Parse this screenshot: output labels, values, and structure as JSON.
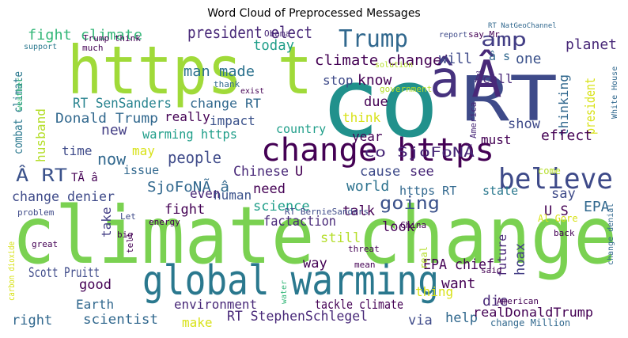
{
  "chart_data": {
    "type": "wordcloud",
    "title": "Word Cloud of Preprocessed Messages",
    "words": [
      {
        "text": "climate change",
        "color": "#7ad151"
      },
      {
        "text": "https t",
        "color": "#a0da39"
      },
      {
        "text": "co",
        "color": "#21918c"
      },
      {
        "text": "RT",
        "color": "#3e4a89"
      },
      {
        "text": "â",
        "color": "#46327e"
      },
      {
        "text": "Â",
        "color": "#482878"
      },
      {
        "text": "global warming",
        "color": "#2a788e"
      },
      {
        "text": "change https",
        "color": "#440154"
      },
      {
        "text": "believe",
        "color": "#3e4a89"
      },
      {
        "text": "Trump",
        "color": "#31688e"
      },
      {
        "text": "president elect",
        "color": "#482878"
      },
      {
        "text": "fight climate",
        "color": "#35b779"
      },
      {
        "text": "amp",
        "color": "#433e85"
      },
      {
        "text": "planet",
        "color": "#482878"
      },
      {
        "text": "man made",
        "color": "#2c728e"
      },
      {
        "text": "today",
        "color": "#1f9e89"
      },
      {
        "text": "climate change'",
        "color": "#440154"
      },
      {
        "text": "will",
        "color": "#3e4a89"
      },
      {
        "text": "â s",
        "color": "#31688e"
      },
      {
        "text": "Ã â",
        "color": "#472c7a"
      },
      {
        "text": "one",
        "color": "#3b528b"
      },
      {
        "text": "RT SenSanders",
        "color": "#26828e"
      },
      {
        "text": "Donald Trump",
        "color": "#31688e"
      },
      {
        "text": "combat climate",
        "color": "#2a788e"
      },
      {
        "text": "husband",
        "color": "#b5de2b"
      },
      {
        "text": "new",
        "color": "#433e85"
      },
      {
        "text": "warming https",
        "color": "#1f9e89"
      },
      {
        "text": "really",
        "color": "#440154"
      },
      {
        "text": "change RT",
        "color": "#31688e"
      },
      {
        "text": "impact",
        "color": "#3b528b"
      },
      {
        "text": "know",
        "color": "#440154"
      },
      {
        "text": "stop",
        "color": "#3e4a89"
      },
      {
        "text": "call",
        "color": "#482878"
      },
      {
        "text": "due",
        "color": "#440154"
      },
      {
        "text": "thinking",
        "color": "#31688e"
      },
      {
        "text": "president",
        "color": "#d8e219"
      },
      {
        "text": "show",
        "color": "#3e4a89"
      },
      {
        "text": "effect",
        "color": "#440154"
      },
      {
        "text": "must",
        "color": "#440154"
      },
      {
        "text": "think",
        "color": "#d8e219"
      },
      {
        "text": "year",
        "color": "#440154"
      },
      {
        "text": "country",
        "color": "#1f9e89"
      },
      {
        "text": "co SjoFoNÃ",
        "color": "#482878"
      },
      {
        "text": "time",
        "color": "#3e4a89"
      },
      {
        "text": "now",
        "color": "#31688e"
      },
      {
        "text": "people",
        "color": "#3e4a89"
      },
      {
        "text": "may",
        "color": "#d8e219"
      },
      {
        "text": "Â RT",
        "color": "#3b528b"
      },
      {
        "text": "SjoFoNÃ â",
        "color": "#31688e"
      },
      {
        "text": "TÃ â",
        "color": "#440154"
      },
      {
        "text": "issue",
        "color": "#31688e"
      },
      {
        "text": "Chinese",
        "color": "#482878"
      },
      {
        "text": "U",
        "color": "#440154"
      },
      {
        "text": "cause",
        "color": "#3e4a89"
      },
      {
        "text": "see",
        "color": "#482878"
      },
      {
        "text": "world",
        "color": "#2c728e"
      },
      {
        "text": "need",
        "color": "#440154"
      },
      {
        "text": "human",
        "color": "#3b528b"
      },
      {
        "text": "even",
        "color": "#482878"
      },
      {
        "text": "change denier",
        "color": "#3e4a89"
      },
      {
        "text": "science",
        "color": "#1f9e89"
      },
      {
        "text": "going",
        "color": "#3b528b"
      },
      {
        "text": "https RT",
        "color": "#31688e"
      },
      {
        "text": "state",
        "color": "#2a788e"
      },
      {
        "text": "say",
        "color": "#3e4a89"
      },
      {
        "text": "EPA",
        "color": "#31688e"
      },
      {
        "text": "U S",
        "color": "#440154"
      },
      {
        "text": "look",
        "color": "#440154"
      },
      {
        "text": "talk",
        "color": "#440154"
      },
      {
        "text": "fight",
        "color": "#440154"
      },
      {
        "text": "take",
        "color": "#433e85"
      },
      {
        "text": "factaction",
        "color": "#482878"
      },
      {
        "text": "still",
        "color": "#b5de2b"
      },
      {
        "text": "Scott Pruitt",
        "color": "#3e4a89"
      },
      {
        "text": "good",
        "color": "#440154"
      },
      {
        "text": "Earth",
        "color": "#31688e"
      },
      {
        "text": "environment",
        "color": "#482878"
      },
      {
        "text": "tackle climate",
        "color": "#440154"
      },
      {
        "text": "RT StephenSchlegel",
        "color": "#482878"
      },
      {
        "text": "scientist",
        "color": "#31688e"
      },
      {
        "text": "right",
        "color": "#31688e"
      },
      {
        "text": "make",
        "color": "#d8e219"
      },
      {
        "text": "via",
        "color": "#3e4a89"
      },
      {
        "text": "help",
        "color": "#31688e"
      },
      {
        "text": "realDonaldTrump",
        "color": "#440154"
      },
      {
        "text": "die",
        "color": "#482878"
      },
      {
        "text": "EPA chief",
        "color": "#440154"
      },
      {
        "text": "want",
        "color": "#440154"
      },
      {
        "text": "thing",
        "color": "#d8e219"
      },
      {
        "text": "way",
        "color": "#440154"
      },
      {
        "text": "hoax",
        "color": "#433e85"
      },
      {
        "text": "future",
        "color": "#482878"
      },
      {
        "text": "American",
        "color": "#440154"
      },
      {
        "text": "change Million",
        "color": "#31688e"
      },
      {
        "text": "Al Gore",
        "color": "#d8e219"
      },
      {
        "text": "Obama",
        "color": "#482878"
      },
      {
        "text": "Trump think",
        "color": "#440154"
      },
      {
        "text": "much",
        "color": "#440154"
      },
      {
        "text": "support",
        "color": "#2a788e"
      },
      {
        "text": "weather",
        "color": "#35b779"
      },
      {
        "text": "RT NatGeoChannel",
        "color": "#31688e"
      },
      {
        "text": "report",
        "color": "#3e4a89"
      },
      {
        "text": "say Mr",
        "color": "#440154"
      },
      {
        "text": "government",
        "color": "#b5de2b"
      },
      {
        "text": "solution",
        "color": "#b5de2b"
      },
      {
        "text": "White House",
        "color": "#31688e"
      },
      {
        "text": "China",
        "color": "#440154"
      },
      {
        "text": "RT BernieSanders",
        "color": "#3e4a89"
      },
      {
        "text": "threat",
        "color": "#440154"
      },
      {
        "text": "mean",
        "color": "#440154"
      },
      {
        "text": "energy",
        "color": "#440154"
      },
      {
        "text": "problem",
        "color": "#3e4a89"
      },
      {
        "text": "great",
        "color": "#440154"
      },
      {
        "text": "carbon dioxide",
        "color": "#d8e219"
      },
      {
        "text": "water",
        "color": "#35b779"
      },
      {
        "text": "said",
        "color": "#440154"
      },
      {
        "text": "change denial",
        "color": "#31688e"
      },
      {
        "text": "real",
        "color": "#b5de2b"
      },
      {
        "text": "exist",
        "color": "#440154"
      },
      {
        "text": "thank",
        "color": "#31688e"
      },
      {
        "text": "back",
        "color": "#440154"
      },
      {
        "text": "America",
        "color": "#482878"
      },
      {
        "text": "come",
        "color": "#b5de2b"
      },
      {
        "text": "Let",
        "color": "#3e4a89"
      },
      {
        "text": "big",
        "color": "#440154"
      },
      {
        "text": "tell",
        "color": "#440154"
      }
    ]
  }
}
